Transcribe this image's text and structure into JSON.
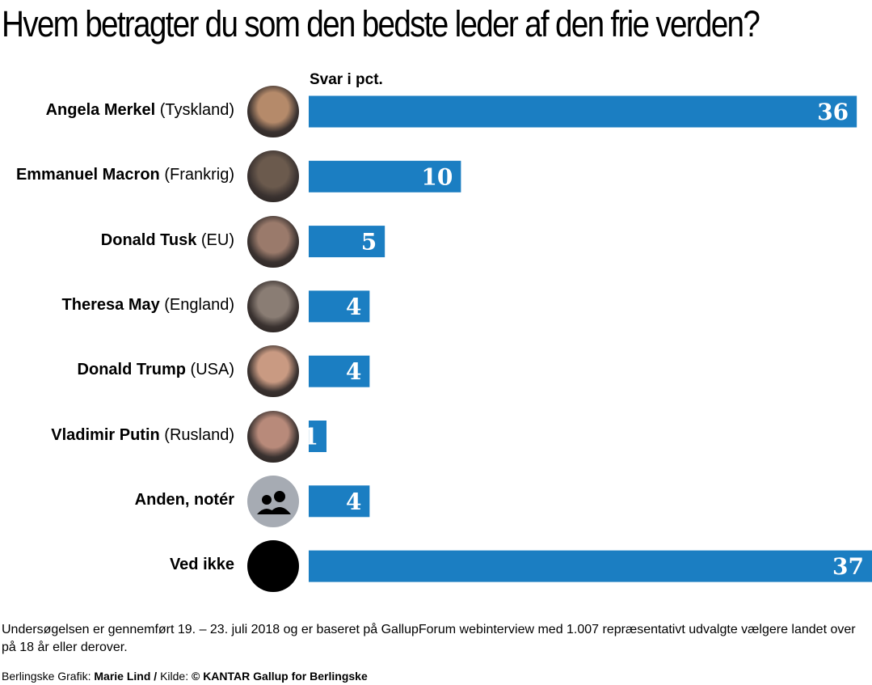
{
  "title": "Hvem betragter du som den bedste leder af den frie verden?",
  "unit_label": "Svar i pct.",
  "colors": {
    "bar": "#1b7ec2",
    "bar_text": "#ffffff"
  },
  "chart_data": {
    "type": "bar",
    "orientation": "horizontal",
    "title": "Hvem betragter du som den bedste leder af den frie verden?",
    "ylabel": "",
    "xlabel": "Svar i pct.",
    "xlim": [
      0,
      37
    ],
    "grid": false,
    "categories": [
      "Angela Merkel (Tyskland)",
      "Emmanuel Macron (Frankrig)",
      "Donald Tusk (EU)",
      "Theresa May (England)",
      "Donald Trump (USA)",
      "Vladimir Putin (Rusland)",
      "Anden, notér",
      "Ved ikke"
    ],
    "values": [
      36,
      10,
      5,
      4,
      4,
      1,
      4,
      37
    ]
  },
  "rows": [
    {
      "name": "Angela Merkel",
      "country": "(Tyskland)",
      "value": "36",
      "avatar": "photo-icon",
      "avatar_color": "#b58a6a"
    },
    {
      "name": "Emmanuel Macron",
      "country": "(Frankrig)",
      "value": "10",
      "avatar": "photo-icon",
      "avatar_color": "#6b5a4d"
    },
    {
      "name": "Donald Tusk",
      "country": "(EU)",
      "value": "5",
      "avatar": "photo-icon",
      "avatar_color": "#9a7a6b"
    },
    {
      "name": "Theresa May",
      "country": "(England)",
      "value": "4",
      "avatar": "photo-icon",
      "avatar_color": "#8a7d74"
    },
    {
      "name": "Donald Trump",
      "country": "(USA)",
      "value": "4",
      "avatar": "photo-icon",
      "avatar_color": "#c99a82"
    },
    {
      "name": "Vladimir Putin",
      "country": "(Rusland)",
      "value": "1",
      "avatar": "photo-icon",
      "avatar_color": "#b88a7a"
    },
    {
      "name": "Anden, notér",
      "country": "",
      "value": "4",
      "avatar": "people-icon",
      "avatar_color": "#a6abb3"
    },
    {
      "name": "Ved ikke",
      "country": "",
      "value": "37",
      "avatar": "dot-icon",
      "avatar_color": "#000000"
    }
  ],
  "footnote": "Undersøgelsen er gennemført 19. – 23. juli 2018 og er baseret på GallupForum webinterview med 1.007 repræsentativt udvalgte vælgere landet over på 18 år eller derover.",
  "credit": {
    "prefix": "Berlingske Grafik: ",
    "author": "Marie Lind",
    "separator": " / ",
    "source_prefix": "Kilde: ",
    "source": "© KANTAR Gallup for Berlingske"
  }
}
